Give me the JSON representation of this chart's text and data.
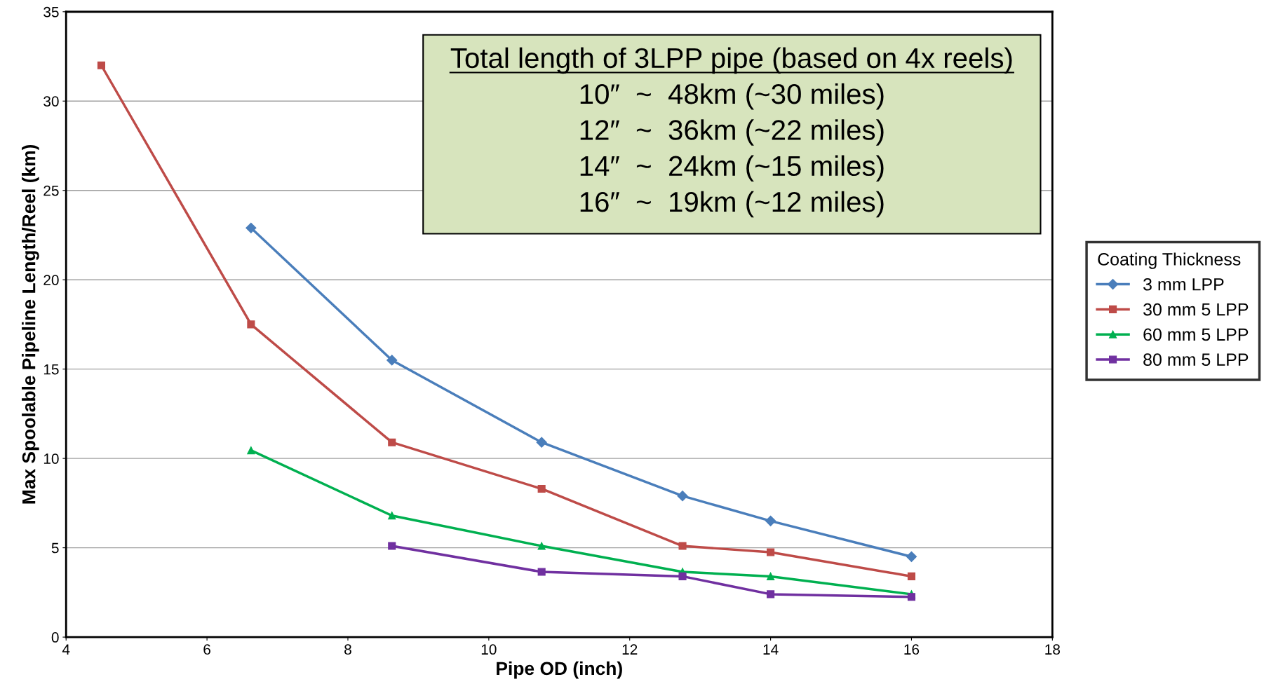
{
  "chart_data": {
    "type": "line",
    "xlabel": "Pipe OD (inch)",
    "ylabel": "Max Spoolable Pipeline Length/Reel (km)",
    "x": [
      4.5,
      6.625,
      8.625,
      10.75,
      12.75,
      14,
      16
    ],
    "series": [
      {
        "name": "3 mm LPP",
        "color": "#4a7ebb",
        "marker": "diamond",
        "values": [
          null,
          22.9,
          15.5,
          10.9,
          7.9,
          6.5,
          4.5
        ]
      },
      {
        "name": "30 mm 5 LPP",
        "color": "#be4b48",
        "marker": "square",
        "values": [
          32.0,
          17.5,
          10.9,
          8.3,
          5.1,
          4.75,
          3.4
        ]
      },
      {
        "name": "60 mm 5 LPP",
        "color": "#00b050",
        "marker": "triangle",
        "values": [
          null,
          10.45,
          6.8,
          5.1,
          3.65,
          3.4,
          2.4
        ]
      },
      {
        "name": "80 mm 5 LPP",
        "color": "#7030a0",
        "marker": "square",
        "values": [
          null,
          null,
          5.1,
          3.65,
          3.4,
          2.4,
          2.25
        ]
      }
    ],
    "xlim": [
      4,
      18
    ],
    "xticks": [
      4,
      6,
      8,
      10,
      12,
      14,
      16,
      18
    ],
    "ylim": [
      0,
      35
    ],
    "yticks": [
      0,
      5,
      10,
      15,
      20,
      25,
      30,
      35
    ],
    "grid": "y",
    "legend": "right",
    "legend_title": "Coating Thickness",
    "line_style": "solid",
    "annotations": [
      "Total length of 3LPP pipe (based on 4x reels)",
      "10″  ~  48km (~30 miles)",
      "12″  ~  36km (~22 miles)",
      "14″  ~  24km (~15 miles)",
      "16″  ~  19km (~12 miles)"
    ]
  }
}
